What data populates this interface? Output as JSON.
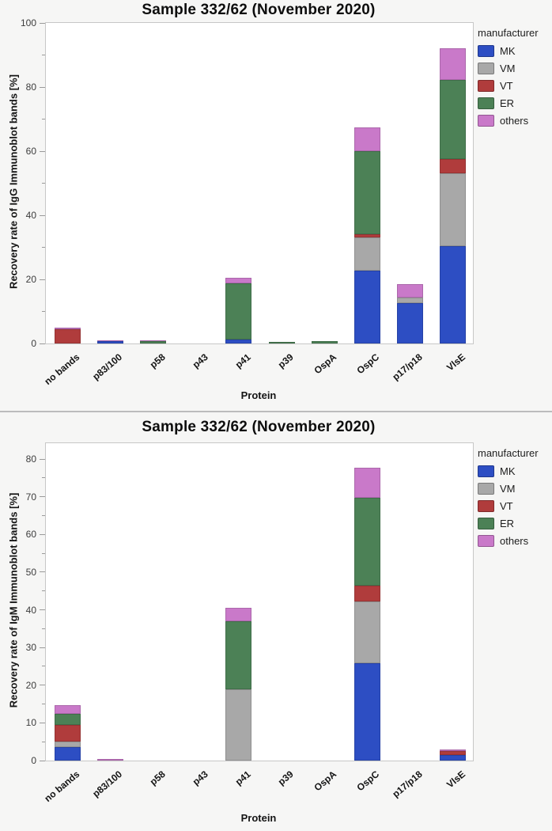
{
  "legend_title": "manufacturer",
  "manufacturer_colors": {
    "MK": "#2d4ec3",
    "VM": "#a8a8a8",
    "VT": "#b03c3c",
    "ER": "#4c8156",
    "others": "#c979c9"
  },
  "chart_data": [
    {
      "type": "bar",
      "stacked": true,
      "title": "Sample 332/62 (November 2020)",
      "xlabel": "Protein",
      "ylabel": "Recovery rate of IgG Immunoblot bands [%]",
      "ylim": [
        0,
        100
      ],
      "ytick_step": 20,
      "minor_tick_step": 10,
      "grid": false,
      "legend_position": "right",
      "legend_title": "manufacturer",
      "categories": [
        "no bands",
        "p83/100",
        "p58",
        "p43",
        "p41",
        "p39",
        "OspA",
        "OspC",
        "p17/p18",
        "VlsE"
      ],
      "series": [
        {
          "name": "MK",
          "color": "#2d4ec3",
          "values": [
            0,
            0.8,
            0,
            0,
            1.2,
            0,
            0,
            22.7,
            12.6,
            30.3
          ]
        },
        {
          "name": "VM",
          "color": "#a8a8a8",
          "values": [
            0,
            0,
            0,
            0,
            0,
            0,
            0,
            10.3,
            1.8,
            22.9
          ]
        },
        {
          "name": "VT",
          "color": "#b03c3c",
          "values": [
            4.5,
            0,
            0,
            0,
            0,
            0,
            0,
            1.0,
            0,
            4.4
          ]
        },
        {
          "name": "ER",
          "color": "#4c8156",
          "values": [
            0,
            0,
            0.8,
            0,
            17.6,
            0.4,
            0.7,
            25.9,
            0,
            24.6
          ]
        },
        {
          "name": "others",
          "color": "#c979c9",
          "values": [
            0.4,
            0.3,
            0.3,
            0,
            1.6,
            0,
            0,
            7.5,
            4.2,
            9.8
          ]
        }
      ],
      "stack_totals": [
        4.9,
        1.1,
        1.1,
        0,
        20.4,
        0.4,
        0.7,
        67.4,
        18.6,
        92.0
      ]
    },
    {
      "type": "bar",
      "stacked": true,
      "title": "Sample 332/62 (November 2020)",
      "xlabel": "Protein",
      "ylabel": "Recovery rate of IgM Immunoblot bands [%]",
      "ylim": [
        0,
        80
      ],
      "ytick_step": 10,
      "minor_tick_step": 5,
      "grid": false,
      "legend_position": "right",
      "legend_title": "manufacturer",
      "categories": [
        "no bands",
        "p83/100",
        "p58",
        "p43",
        "p41",
        "p39",
        "OspA",
        "OspC",
        "p17/p18",
        "VlsE"
      ],
      "series": [
        {
          "name": "MK",
          "color": "#2d4ec3",
          "values": [
            3.5,
            0,
            0,
            0,
            0,
            0,
            0,
            25.9,
            0,
            1.5
          ]
        },
        {
          "name": "VM",
          "color": "#a8a8a8",
          "values": [
            1.5,
            0,
            0,
            0,
            19.0,
            0,
            0,
            16.3,
            0,
            0
          ]
        },
        {
          "name": "VT",
          "color": "#b03c3c",
          "values": [
            4.4,
            0,
            0,
            0,
            0,
            0,
            0,
            4.2,
            0,
            1.0
          ]
        },
        {
          "name": "ER",
          "color": "#4c8156",
          "values": [
            2.9,
            0,
            0,
            0,
            18.0,
            0,
            0,
            23.4,
            0,
            0
          ]
        },
        {
          "name": "others",
          "color": "#c979c9",
          "values": [
            2.5,
            0.5,
            0,
            0,
            3.5,
            0,
            0,
            7.8,
            0,
            0.5
          ]
        }
      ],
      "stack_totals": [
        14.8,
        0.5,
        0,
        0,
        40.5,
        0,
        0,
        77.6,
        0,
        3.0
      ]
    }
  ]
}
